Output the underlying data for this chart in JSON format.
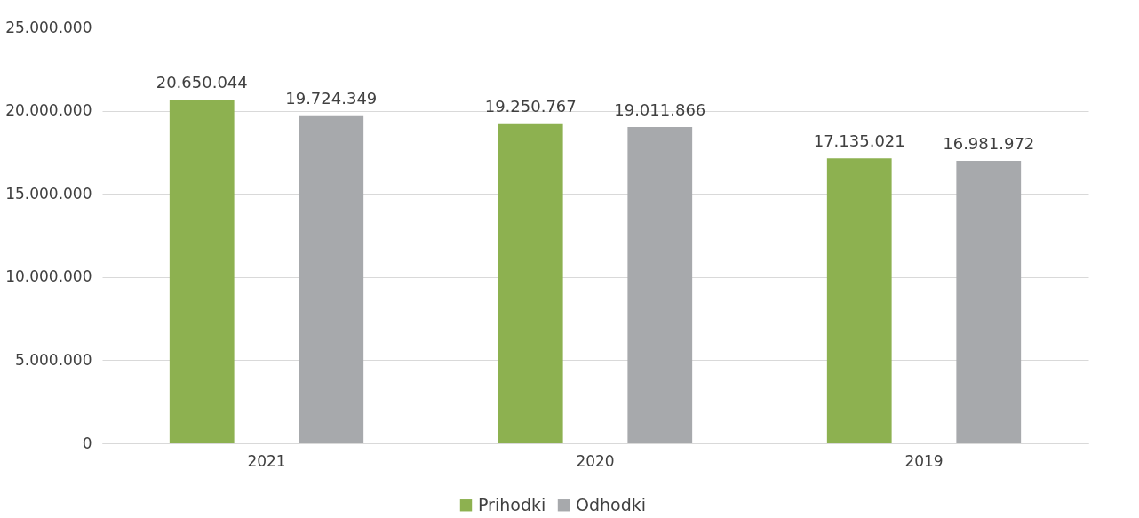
{
  "chart_data": {
    "type": "bar",
    "categories": [
      "2021",
      "2020",
      "2019"
    ],
    "series": [
      {
        "name": "Prihodki",
        "color": "#8db150",
        "values": [
          20650044,
          19250767,
          17135021
        ],
        "value_labels": [
          "20.650.044",
          "19.250.767",
          "17.135.021"
        ]
      },
      {
        "name": "Odhodki",
        "color": "#a7a9ac",
        "values": [
          19724349,
          19011866,
          16981972
        ],
        "value_labels": [
          "19.724.349",
          "19.011.866",
          "16.981.972"
        ]
      }
    ],
    "ylim": [
      0,
      25000000
    ],
    "yticks": [
      0,
      {
        "value": 5000000,
        "label": "5.000.000"
      },
      {
        "value": 10000000,
        "label": "10.000.000"
      },
      {
        "value": 15000000,
        "label": "15.000.000"
      },
      {
        "value": 20000000,
        "label": "20.000.000"
      },
      {
        "value": 25000000,
        "label": "25.000.000"
      }
    ],
    "grid": "y",
    "legend": "bottom"
  }
}
